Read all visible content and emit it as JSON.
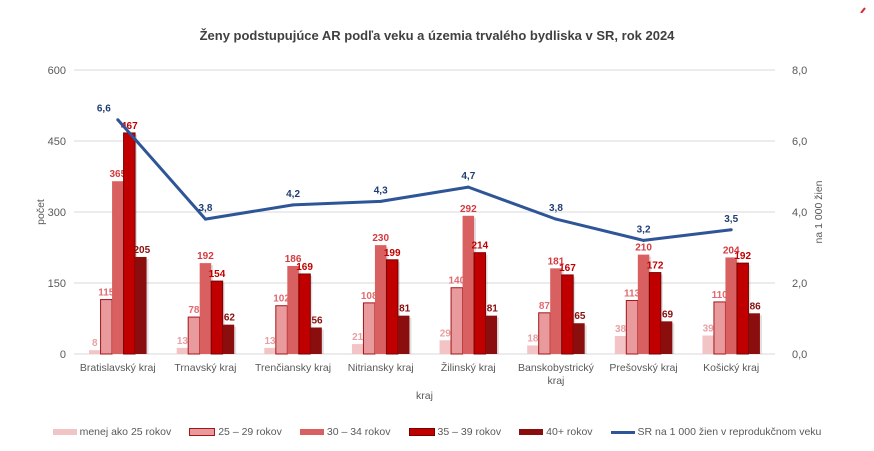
{
  "chart_data": {
    "type": "bar",
    "title": "Ženy podstupujúce AR podľa veku a územia trvalého bydliska v SR, rok 2024",
    "xlabel": "kraj",
    "ylabel": "počet",
    "y2label": "na 1 000 žien",
    "ylim": [
      0,
      600
    ],
    "yticks": [
      "0",
      "150",
      "300",
      "450",
      "600"
    ],
    "y2lim": [
      0,
      8
    ],
    "y2ticks": [
      "0,0",
      "2,0",
      "4,0",
      "6,0",
      "8,0"
    ],
    "grid": true,
    "legend_position": "bottom",
    "categories": [
      "Bratislavský kraj",
      "Trnavský kraj",
      "Trenčiansky kraj",
      "Nitriansky kraj",
      "Žilinský kraj",
      "Banskobystrický kraj",
      "Prešovský kraj",
      "Košický kraj"
    ],
    "series": [
      {
        "name": "menej ako 25 rokov",
        "type": "bar",
        "color": "#f2c4c6",
        "label_color": "#e8a0a3",
        "values": [
          8,
          13,
          13,
          21,
          29,
          18,
          38,
          39
        ]
      },
      {
        "name": "25 – 29 rokov",
        "type": "bar",
        "color": "#e99a9d",
        "border": "#a31519",
        "label_color": "#e06b70",
        "values": [
          115,
          78,
          102,
          108,
          140,
          87,
          113,
          110
        ]
      },
      {
        "name": "30 – 34 rokov",
        "type": "bar",
        "color": "#d96060",
        "label_color": "#d43b40",
        "values": [
          365,
          192,
          186,
          230,
          292,
          181,
          210,
          204
        ]
      },
      {
        "name": "35 – 39 rokov",
        "type": "bar",
        "color": "#c00000",
        "border": "#7a0000",
        "label_color": "#c00000",
        "values": [
          467,
          154,
          169,
          199,
          214,
          167,
          172,
          192
        ]
      },
      {
        "name": "40+ rokov",
        "type": "bar",
        "color": "#8b0e0e",
        "label_color": "#8b0e0e",
        "values": [
          205,
          62,
          56,
          81,
          81,
          65,
          69,
          86
        ]
      },
      {
        "name": "SR na 1 000 žien v reprodukčnom veku",
        "type": "line",
        "axis": "secondary",
        "color": "#2e5597",
        "label_color": "#1f3d73",
        "values": [
          6.6,
          3.8,
          4.2,
          4.3,
          4.7,
          3.8,
          3.2,
          3.5
        ],
        "labels": [
          "6,6",
          "3,8",
          "4,2",
          "4,3",
          "4,7",
          "3,8",
          "3,2",
          "3,5"
        ]
      }
    ]
  }
}
